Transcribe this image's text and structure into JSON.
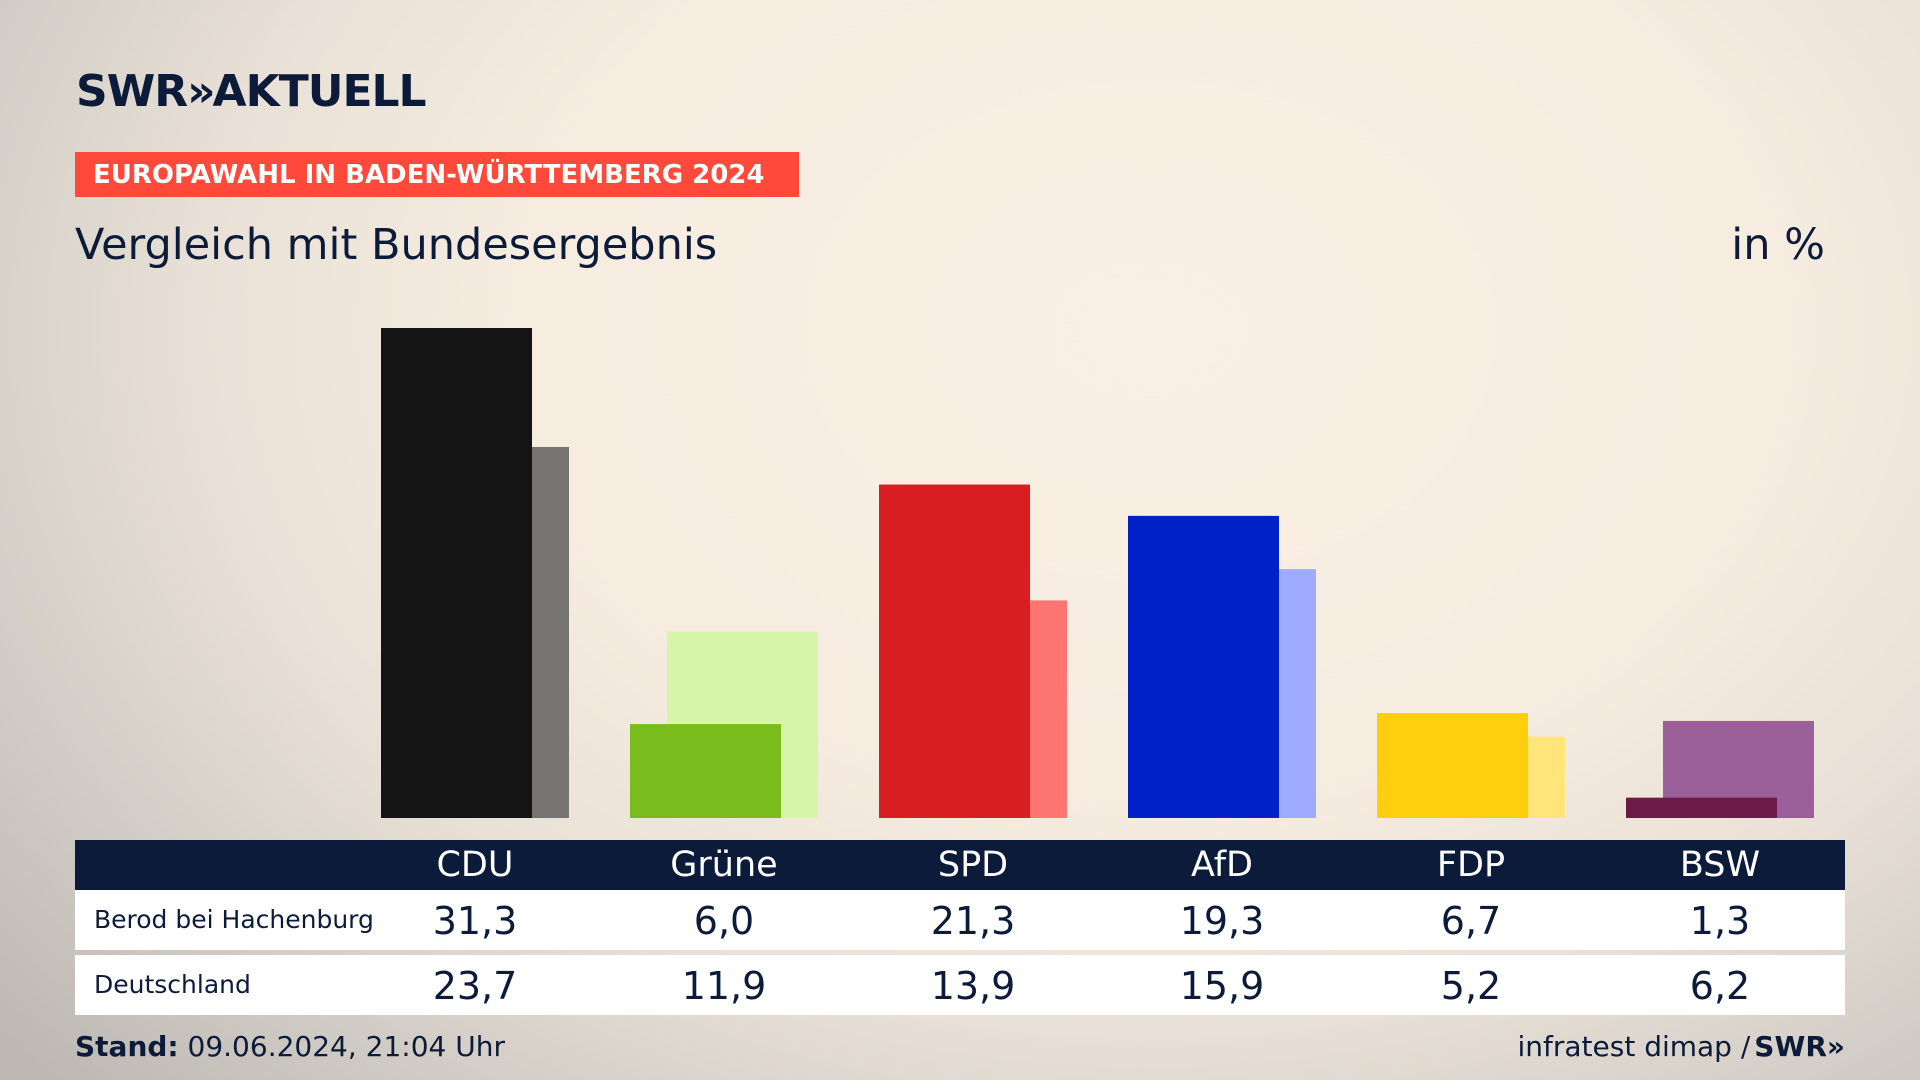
{
  "header": {
    "brand_left": "SWR",
    "brand_chevron": "»",
    "brand_right": "AKTUELL",
    "banner": "EUROPAWAHL IN BADEN-WÜRTTEMBERG 2024",
    "title": "Vergleich mit Bundesergebnis",
    "unit": "in %"
  },
  "chart_data": {
    "type": "bar",
    "categories": [
      "CDU",
      "Grüne",
      "SPD",
      "AfD",
      "FDP",
      "BSW"
    ],
    "series": [
      {
        "name": "Berod bei Hachenburg",
        "values": [
          31.3,
          6.0,
          21.3,
          19.3,
          6.7,
          1.3
        ]
      },
      {
        "name": "Deutschland",
        "values": [
          23.7,
          11.9,
          13.9,
          15.9,
          5.2,
          6.2
        ]
      }
    ],
    "ylim": [
      0,
      31.3
    ],
    "grid": false,
    "colors": {
      "CDU": [
        "#141414",
        "#757472"
      ],
      "Grüne": [
        "#79bd1c",
        "#d7f5a9"
      ],
      "SPD": [
        "#d81e20",
        "#ff7571"
      ],
      "AfD": [
        "#0021c8",
        "#9fabff"
      ],
      "FDP": [
        "#ffcf0d",
        "#ffe57a"
      ],
      "BSW": [
        "#6c1a47",
        "#9b6099"
      ]
    },
    "xlabel": "",
    "ylabel": ""
  },
  "table": {
    "rows": [
      {
        "label": "Berod bei Hachenburg",
        "values": [
          "31,3",
          "6,0",
          "21,3",
          "19,3",
          "6,7",
          "1,3"
        ]
      },
      {
        "label": "Deutschland",
        "values": [
          "23,7",
          "11,9",
          "13,9",
          "15,9",
          "5,2",
          "6,2"
        ]
      }
    ]
  },
  "footer": {
    "stand_label": "Stand:",
    "stand_value": "09.06.2024, 21:04 Uhr",
    "source": "infratest dimap /",
    "source_brand": "SWR»"
  }
}
